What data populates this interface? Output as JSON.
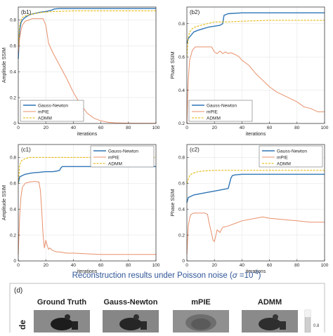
{
  "colors": {
    "gauss_newton": "#2e75b6",
    "mpie": "#e8906a",
    "admm": "#e4b400",
    "grid": "#e6e6e6",
    "axis": "#262626",
    "caption": "#2f5597"
  },
  "caption": {
    "text": "Reconstruction results under Poisson noise (",
    "sigma": "σ",
    "value": " =10",
    "exponent": "-4",
    "close": ")"
  },
  "panel_d": {
    "label": "(d)",
    "row_label": "de",
    "columns": [
      "Ground Truth",
      "Gauss-Newton",
      "mPIE",
      "ADMM"
    ],
    "colorbar_tick": "0.8"
  },
  "chart_data": [
    {
      "id": "b1",
      "type": "line",
      "panel_label": "(b1)",
      "xlabel": "iterations",
      "ylabel": "Amplitude SSIM",
      "xlim": [
        0,
        100
      ],
      "ylim": [
        0,
        0.9
      ],
      "xticks": [
        0,
        20,
        40,
        60,
        80,
        100
      ],
      "yticks": [
        0,
        0.2,
        0.4,
        0.6,
        0.8
      ],
      "ytick_labels": [
        "0",
        "0.2",
        "0.4",
        "0.6",
        "0.8"
      ],
      "grid": true,
      "legend_position": "bottom-left",
      "series": [
        {
          "name": "Gauss-Newton",
          "style": "solid",
          "x": [
            0,
            1,
            2,
            3,
            5,
            8,
            12,
            16,
            20,
            22,
            24,
            26,
            30,
            40,
            60,
            80,
            100
          ],
          "y": [
            0.5,
            0.72,
            0.78,
            0.8,
            0.82,
            0.84,
            0.85,
            0.86,
            0.865,
            0.87,
            0.875,
            0.885,
            0.888,
            0.888,
            0.888,
            0.888,
            0.888
          ]
        },
        {
          "name": "mPIE",
          "style": "solid",
          "x": [
            0,
            1,
            2,
            3,
            5,
            8,
            10,
            15,
            18,
            20,
            22,
            25,
            30,
            35,
            40,
            45,
            50,
            55,
            60,
            65,
            70,
            75,
            80,
            90,
            100
          ],
          "y": [
            0.55,
            0.66,
            0.72,
            0.76,
            0.79,
            0.8,
            0.81,
            0.81,
            0.81,
            0.76,
            0.62,
            0.55,
            0.45,
            0.35,
            0.24,
            0.15,
            0.08,
            0.04,
            0.02,
            0.01,
            0.005,
            0.003,
            0.002,
            0.001,
            0.001
          ]
        },
        {
          "name": "ADMM",
          "style": "dash",
          "x": [
            0,
            1,
            2,
            3,
            5,
            8,
            12,
            18,
            25,
            40,
            60,
            80,
            100
          ],
          "y": [
            0.6,
            0.76,
            0.8,
            0.82,
            0.83,
            0.84,
            0.85,
            0.86,
            0.865,
            0.87,
            0.87,
            0.87,
            0.87
          ]
        }
      ]
    },
    {
      "id": "b2",
      "type": "line",
      "panel_label": "(b2)",
      "xlabel": "iterations",
      "ylabel": "Phase SSIM",
      "xlim": [
        0,
        100
      ],
      "ylim": [
        0.2,
        0.9
      ],
      "xticks": [
        0,
        20,
        40,
        60,
        80,
        100
      ],
      "yticks": [
        0.2,
        0.4,
        0.6,
        0.8
      ],
      "ytick_labels": [
        "0.2",
        "0.4",
        "0.6",
        "0.8"
      ],
      "grid": true,
      "legend_position": "bottom-left",
      "series": [
        {
          "name": "Gauss-Newton",
          "style": "solid",
          "x": [
            0,
            1,
            3,
            5,
            8,
            12,
            16,
            20,
            24,
            26,
            27,
            30,
            40,
            60,
            80,
            100
          ],
          "y": [
            0.68,
            0.71,
            0.73,
            0.75,
            0.76,
            0.77,
            0.78,
            0.785,
            0.79,
            0.8,
            0.85,
            0.86,
            0.865,
            0.865,
            0.865,
            0.865
          ]
        },
        {
          "name": "mPIE",
          "style": "solid",
          "x": [
            0,
            1,
            2,
            4,
            6,
            10,
            14,
            18,
            20,
            22,
            24,
            26,
            28,
            30,
            32,
            35,
            38,
            40,
            45,
            50,
            55,
            60,
            65,
            70,
            75,
            80,
            85,
            90,
            95,
            100
          ],
          "y": [
            0.2,
            0.46,
            0.58,
            0.64,
            0.66,
            0.66,
            0.66,
            0.66,
            0.63,
            0.62,
            0.635,
            0.62,
            0.63,
            0.62,
            0.625,
            0.615,
            0.6,
            0.58,
            0.55,
            0.5,
            0.46,
            0.42,
            0.39,
            0.37,
            0.35,
            0.33,
            0.3,
            0.29,
            0.27,
            0.27
          ]
        },
        {
          "name": "ADMM",
          "style": "dash",
          "x": [
            0,
            1,
            2,
            4,
            6,
            10,
            15,
            20,
            30,
            40,
            60,
            80,
            100
          ],
          "y": [
            0.6,
            0.72,
            0.75,
            0.77,
            0.78,
            0.79,
            0.8,
            0.81,
            0.81,
            0.815,
            0.82,
            0.82,
            0.82
          ]
        }
      ]
    },
    {
      "id": "c1",
      "type": "line",
      "panel_label": "(c1)",
      "xlabel": "iterations",
      "ylabel": "Amplitude SSIM",
      "xlim": [
        0,
        100
      ],
      "ylim": [
        0,
        0.9
      ],
      "xticks": [
        0,
        20,
        40,
        60,
        80,
        100
      ],
      "yticks": [
        0,
        0.2,
        0.4,
        0.6,
        0.8
      ],
      "ytick_labels": [
        "0",
        "0.2",
        "0.4",
        "0.6",
        "0.8"
      ],
      "grid": true,
      "legend_position": "top-right",
      "series": [
        {
          "name": "Gauss-Newton",
          "style": "solid",
          "x": [
            0,
            1,
            3,
            5,
            10,
            15,
            20,
            25,
            28,
            30,
            31,
            32,
            35,
            40,
            60,
            80,
            100
          ],
          "y": [
            0.6,
            0.65,
            0.66,
            0.67,
            0.68,
            0.685,
            0.69,
            0.69,
            0.695,
            0.7,
            0.72,
            0.73,
            0.73,
            0.73,
            0.73,
            0.73,
            0.73
          ]
        },
        {
          "name": "mPIE",
          "style": "solid",
          "x": [
            0,
            1,
            2,
            3,
            5,
            8,
            12,
            15,
            16,
            17,
            18,
            19,
            20,
            21,
            22,
            23,
            25,
            28,
            30,
            35,
            40,
            50,
            60,
            80,
            100
          ],
          "y": [
            0.05,
            0.35,
            0.5,
            0.57,
            0.6,
            0.61,
            0.615,
            0.61,
            0.55,
            0.4,
            0.2,
            0.1,
            0.16,
            0.12,
            0.09,
            0.1,
            0.08,
            0.07,
            0.07,
            0.06,
            0.06,
            0.055,
            0.05,
            0.05,
            0.05
          ]
        },
        {
          "name": "ADMM",
          "style": "dash",
          "x": [
            0,
            1,
            2,
            3,
            5,
            8,
            12,
            20,
            30,
            50,
            70,
            100
          ],
          "y": [
            0.6,
            0.74,
            0.77,
            0.78,
            0.79,
            0.8,
            0.8,
            0.8,
            0.8,
            0.8,
            0.8,
            0.8
          ]
        }
      ]
    },
    {
      "id": "c2",
      "type": "line",
      "panel_label": "(c2)",
      "xlabel": "iterations",
      "ylabel": "Phase SSIM",
      "xlim": [
        0,
        100
      ],
      "ylim": [
        0,
        0.9
      ],
      "xticks": [
        0,
        20,
        40,
        60,
        80,
        100
      ],
      "yticks": [
        0,
        0.2,
        0.4,
        0.6,
        0.8
      ],
      "ytick_labels": [
        "0",
        "0.2",
        "0.4",
        "0.6",
        "0.8"
      ],
      "grid": true,
      "legend_position": "top-right",
      "series": [
        {
          "name": "Gauss-Newton",
          "style": "solid",
          "x": [
            0,
            1,
            3,
            5,
            10,
            15,
            20,
            25,
            30,
            31,
            32,
            33,
            35,
            40,
            60,
            80,
            100
          ],
          "y": [
            0.45,
            0.49,
            0.5,
            0.51,
            0.52,
            0.53,
            0.54,
            0.55,
            0.56,
            0.6,
            0.64,
            0.66,
            0.665,
            0.67,
            0.67,
            0.67,
            0.67
          ]
        },
        {
          "name": "mPIE",
          "style": "solid",
          "x": [
            0,
            1,
            2,
            3,
            5,
            10,
            13,
            15,
            16,
            18,
            19,
            20,
            22,
            24,
            26,
            30,
            35,
            40,
            50,
            55,
            60,
            70,
            80,
            90,
            100
          ],
          "y": [
            0.05,
            0.27,
            0.33,
            0.36,
            0.37,
            0.37,
            0.37,
            0.36,
            0.3,
            0.21,
            0.16,
            0.15,
            0.24,
            0.22,
            0.26,
            0.27,
            0.29,
            0.31,
            0.33,
            0.34,
            0.33,
            0.32,
            0.31,
            0.3,
            0.3
          ]
        },
        {
          "name": "ADMM",
          "style": "dash",
          "x": [
            0,
            1,
            2,
            3,
            5,
            8,
            12,
            20,
            30,
            40,
            60,
            80,
            100
          ],
          "y": [
            0.6,
            0.63,
            0.66,
            0.67,
            0.68,
            0.69,
            0.695,
            0.7,
            0.7,
            0.7,
            0.7,
            0.7,
            0.7
          ]
        }
      ]
    }
  ]
}
